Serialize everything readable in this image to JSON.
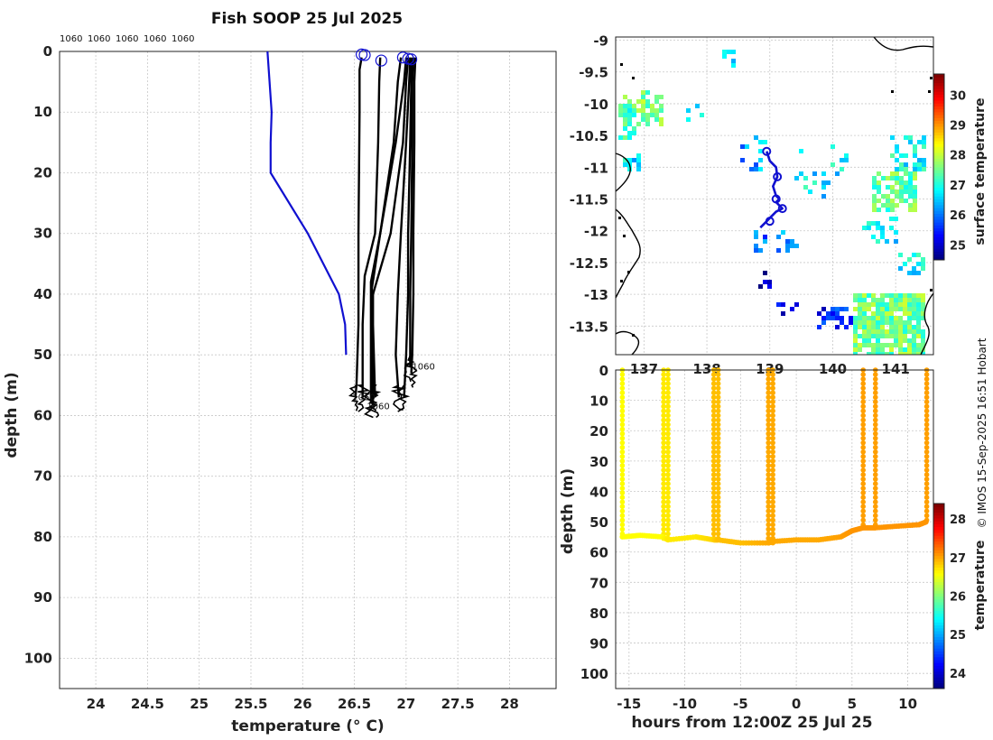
{
  "title": "Fish SOOP 25 Jul 2025",
  "credit": "© IMOS 15-Sep-2025 16:51 Hobart",
  "chart_data": [
    {
      "type": "line",
      "name": "profile",
      "xlabel": "temperature (° C)",
      "ylabel": "depth (m)",
      "xlim": [
        23.65,
        28.45
      ],
      "ylim": [
        105,
        0
      ],
      "xticks": [
        24,
        24.5,
        25,
        25.5,
        26,
        26.5,
        27,
        27.5,
        28
      ],
      "yticks": [
        0,
        10,
        20,
        30,
        40,
        50,
        60,
        70,
        80,
        90,
        100
      ],
      "grid": true,
      "top_labels": [
        "1060",
        "1060",
        "1060",
        "1060",
        "1060"
      ],
      "bottom_labels": [
        "1060",
        "1060",
        "1060"
      ],
      "series": [
        {
          "color": "#1010d0",
          "x": [
            25.66,
            25.7,
            25.69,
            25.69,
            26.05,
            26.35,
            26.41,
            26.42
          ],
          "y": [
            0,
            10,
            15,
            20,
            30,
            40,
            45,
            50
          ]
        },
        {
          "color": "#000000",
          "x": [
            26.57,
            26.55,
            26.55,
            26.54,
            26.54,
            26.52,
            26.51
          ],
          "y": [
            1,
            3,
            10,
            30,
            45,
            55,
            57
          ]
        },
        {
          "color": "#000000",
          "x": [
            26.75,
            26.74,
            26.73,
            26.7,
            26.6,
            26.58,
            26.58
          ],
          "y": [
            1,
            5,
            15,
            30,
            37,
            45,
            57
          ]
        },
        {
          "color": "#000000",
          "x": [
            26.95,
            26.92,
            26.88,
            26.75,
            26.66,
            26.66,
            26.66
          ],
          "y": [
            1,
            5,
            15,
            30,
            38,
            45,
            58
          ]
        },
        {
          "color": "#000000",
          "x": [
            27.0,
            26.98,
            26.9,
            26.75,
            26.67,
            26.67,
            26.68
          ],
          "y": [
            1,
            5,
            15,
            30,
            39,
            45,
            58
          ]
        },
        {
          "color": "#000000",
          "x": [
            27.02,
            27.0,
            26.97,
            26.85,
            26.68,
            26.68,
            26.7
          ],
          "y": [
            1,
            5,
            15,
            30,
            40,
            45,
            57
          ]
        },
        {
          "color": "#000000",
          "x": [
            27.04,
            27.03,
            27.0,
            26.95,
            26.92,
            26.9,
            26.93
          ],
          "y": [
            1,
            5,
            15,
            30,
            40,
            50,
            57
          ]
        },
        {
          "color": "#000000",
          "x": [
            27.05,
            27.05,
            27.04,
            27.02,
            27.02,
            27.0,
            26.98
          ],
          "y": [
            1,
            5,
            15,
            30,
            40,
            50,
            57
          ]
        },
        {
          "color": "#000000",
          "x": [
            27.07,
            27.06,
            27.06,
            27.05,
            27.04,
            27.04,
            27.04
          ],
          "y": [
            1,
            5,
            15,
            30,
            40,
            50,
            52
          ]
        },
        {
          "color": "#000000",
          "x": [
            27.09,
            27.08,
            27.08,
            27.07,
            27.07,
            27.06,
            27.05
          ],
          "y": [
            1,
            5,
            15,
            30,
            40,
            50,
            53
          ]
        }
      ],
      "start_markers": [
        {
          "x": 26.57,
          "y": 0.5
        },
        {
          "x": 26.6,
          "y": 0.6
        },
        {
          "x": 26.76,
          "y": 1.5
        },
        {
          "x": 26.97,
          "y": 1.0
        },
        {
          "x": 27.02,
          "y": 1.2
        },
        {
          "x": 27.05,
          "y": 1.3
        }
      ]
    },
    {
      "type": "heatmap",
      "name": "map",
      "xlim": [
        136.55,
        141.6
      ],
      "ylim": [
        -13.95,
        -8.95
      ],
      "xticks": [
        137,
        138,
        139,
        140,
        141
      ],
      "yticks": [
        -9,
        -9.5,
        -10,
        -10.5,
        -11,
        -11.5,
        -12,
        -12.5,
        -13,
        -13.5
      ],
      "colorbar_label": "surface temperature",
      "colorbar_ticks": [
        25,
        26,
        27,
        28,
        29,
        30
      ],
      "colorbar_range": [
        24.5,
        30.7
      ],
      "track": {
        "lon": [
          138.95,
          139.0,
          139.1,
          139.12,
          139.05,
          139.1,
          139.15,
          139.1,
          139.2,
          139.1,
          139.0,
          138.95,
          138.85
        ],
        "lat": [
          -10.75,
          -10.9,
          -11.0,
          -11.15,
          -11.3,
          -11.45,
          -11.5,
          -11.55,
          -11.65,
          -11.7,
          -11.8,
          -11.85,
          -11.95
        ]
      },
      "track_markers": [
        {
          "lon": 138.95,
          "lat": -10.75
        },
        {
          "lon": 139.12,
          "lat": -11.15
        },
        {
          "lon": 139.1,
          "lat": -11.5
        },
        {
          "lon": 139.2,
          "lat": -11.65
        },
        {
          "lon": 139.0,
          "lat": -11.85
        }
      ]
    },
    {
      "type": "scatter",
      "name": "section",
      "xlabel": "hours from 12:00Z 25 Jul 25",
      "ylabel": "depth (m)",
      "xlim": [
        -16.2,
        12.3
      ],
      "ylim": [
        105,
        0
      ],
      "xticks": [
        -15,
        -10,
        -5,
        0,
        5,
        10
      ],
      "yticks": [
        0,
        10,
        20,
        30,
        40,
        50,
        60,
        70,
        80,
        90,
        100
      ],
      "colorbar_label": "temperature",
      "colorbar_ticks": [
        24,
        25,
        26,
        27,
        28
      ],
      "colorbar_range": [
        23.6,
        28.4
      ],
      "profiles": [
        {
          "x": -15.6,
          "bottom": 55,
          "temp": 26.6
        },
        {
          "x": -11.9,
          "bottom": 56,
          "temp": 26.7
        },
        {
          "x": -11.5,
          "bottom": 56,
          "temp": 26.7
        },
        {
          "x": -7.4,
          "bottom": 56,
          "temp": 26.9
        },
        {
          "x": -7.0,
          "bottom": 56,
          "temp": 26.9
        },
        {
          "x": -2.5,
          "bottom": 57,
          "temp": 27.0
        },
        {
          "x": -2.1,
          "bottom": 57,
          "temp": 27.0
        },
        {
          "x": 6.0,
          "bottom": 52,
          "temp": 27.05
        },
        {
          "x": 7.1,
          "bottom": 52,
          "temp": 27.05
        },
        {
          "x": 11.7,
          "bottom": 50,
          "temp": 27.05
        }
      ],
      "bottom_track": {
        "x": [
          -15.6,
          -14,
          -12,
          -11.5,
          -9,
          -7.4,
          -7,
          -5,
          -2.5,
          -2.1,
          0,
          2,
          4,
          5,
          6,
          7.1,
          9,
          11,
          11.7
        ],
        "y": [
          55,
          54.5,
          55,
          56,
          55,
          56,
          56,
          57,
          57,
          56.5,
          56,
          56,
          55,
          53,
          52,
          52,
          51.5,
          51,
          50
        ],
        "temp": [
          26.6,
          26.6,
          26.6,
          26.7,
          26.7,
          26.8,
          26.9,
          26.9,
          27.0,
          27.0,
          27.0,
          27.0,
          27.05,
          27.1,
          27.1,
          27.1,
          27.1,
          27.1,
          27.1
        ]
      }
    }
  ]
}
